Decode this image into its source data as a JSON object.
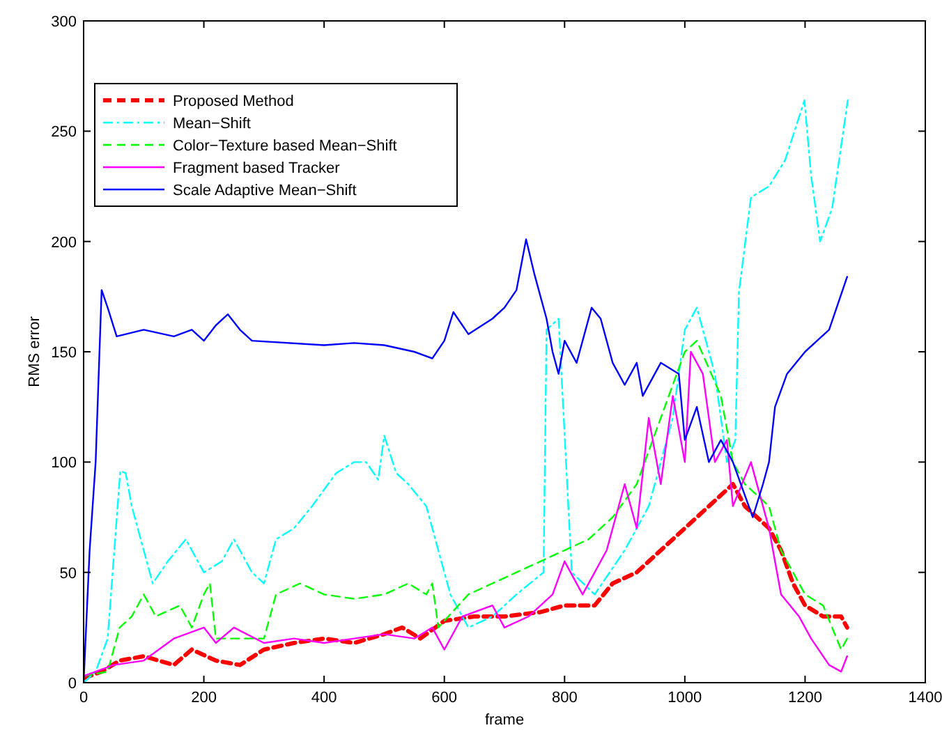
{
  "chart_data": {
    "type": "line",
    "xlabel": "frame",
    "ylabel": "RMS error",
    "xlim": [
      0,
      1400
    ],
    "xticks": [
      0,
      200,
      400,
      600,
      800,
      1000,
      1200,
      1400
    ],
    "ylim": [
      0,
      300
    ],
    "yticks": [
      0,
      50,
      100,
      150,
      200,
      250,
      300
    ],
    "grid": false,
    "legend": "top left",
    "marker": "none",
    "series": [
      {
        "name": "Proposed Method",
        "color": "#ff0000",
        "line_style": "dashed",
        "x": [
          0,
          30,
          60,
          100,
          150,
          180,
          220,
          260,
          300,
          350,
          400,
          450,
          500,
          530,
          560,
          600,
          650,
          700,
          760,
          800,
          850,
          880,
          920,
          960,
          1000,
          1040,
          1060,
          1080,
          1100,
          1120,
          1140,
          1160,
          1180,
          1200,
          1230,
          1260,
          1270
        ],
        "values": [
          2,
          5,
          10,
          12,
          8,
          15,
          10,
          8,
          15,
          18,
          20,
          18,
          22,
          25,
          20,
          28,
          30,
          30,
          32,
          35,
          35,
          45,
          50,
          60,
          70,
          80,
          85,
          90,
          80,
          75,
          70,
          60,
          45,
          35,
          30,
          30,
          25
        ]
      },
      {
        "name": "Mean−Shift",
        "color": "#00ffff",
        "line_style": "dashdot",
        "x": [
          0,
          20,
          40,
          61,
          70,
          80,
          100,
          115,
          140,
          170,
          180,
          200,
          230,
          250,
          280,
          300,
          320,
          350,
          380,
          420,
          450,
          470,
          490,
          500,
          520,
          540,
          570,
          590,
          610,
          640,
          680,
          720,
          765,
          770,
          790,
          812,
          850,
          900,
          940,
          980,
          1000,
          1020,
          1050,
          1070,
          1084,
          1090,
          1110,
          1140,
          1167,
          1199,
          1210,
          1225,
          1245,
          1271
        ],
        "values": [
          0,
          5,
          20,
          96,
          95,
          80,
          60,
          45,
          55,
          65,
          60,
          50,
          55,
          65,
          50,
          45,
          65,
          70,
          80,
          95,
          100,
          100,
          92,
          112,
          95,
          90,
          80,
          60,
          40,
          25,
          30,
          40,
          50,
          160,
          165,
          50,
          40,
          60,
          80,
          120,
          160,
          170,
          140,
          100,
          110,
          177,
          220,
          225,
          237,
          264,
          230,
          200,
          215,
          264
        ]
      },
      {
        "name": "Color−Texture based Mean−Shift",
        "color": "#00ff00",
        "line_style": "dashed",
        "x": [
          0,
          40,
          60,
          80,
          100,
          120,
          160,
          180,
          200,
          210,
          220,
          300,
          320,
          360,
          400,
          450,
          500,
          540,
          570,
          580,
          590,
          640,
          680,
          720,
          760,
          800,
          840,
          880,
          920,
          960,
          1000,
          1020,
          1060,
          1080,
          1100,
          1140,
          1160,
          1200,
          1230,
          1260,
          1270
        ],
        "values": [
          3,
          5,
          25,
          30,
          40,
          30,
          35,
          25,
          40,
          45,
          20,
          20,
          40,
          45,
          40,
          38,
          40,
          45,
          40,
          45,
          25,
          40,
          45,
          50,
          55,
          60,
          65,
          75,
          90,
          120,
          150,
          155,
          130,
          100,
          90,
          80,
          60,
          40,
          35,
          15,
          20
        ]
      },
      {
        "name": "Fragment based Tracker",
        "color": "#ff00ff",
        "line_style": "solid",
        "x": [
          0,
          50,
          100,
          150,
          200,
          220,
          250,
          300,
          350,
          400,
          450,
          500,
          550,
          580,
          600,
          630,
          680,
          700,
          740,
          780,
          800,
          830,
          870,
          900,
          920,
          940,
          960,
          980,
          1000,
          1010,
          1030,
          1050,
          1070,
          1080,
          1110,
          1140,
          1160,
          1190,
          1210,
          1240,
          1260,
          1270
        ],
        "values": [
          3,
          8,
          10,
          20,
          25,
          18,
          25,
          18,
          20,
          18,
          20,
          22,
          20,
          25,
          15,
          30,
          35,
          25,
          30,
          40,
          55,
          40,
          60,
          90,
          70,
          120,
          90,
          130,
          100,
          150,
          140,
          100,
          110,
          80,
          100,
          70,
          40,
          30,
          20,
          8,
          5,
          12
        ]
      },
      {
        "name": "Scale Adaptive Mean−Shift",
        "color": "#0000ff",
        "line_style": "solid",
        "x": [
          0,
          10,
          20,
          30,
          40,
          55,
          100,
          150,
          180,
          200,
          220,
          240,
          260,
          280,
          400,
          450,
          500,
          550,
          580,
          600,
          615,
          640,
          680,
          700,
          720,
          736,
          750,
          770,
          780,
          790,
          800,
          820,
          845,
          860,
          880,
          900,
          920,
          930,
          960,
          990,
          1000,
          1020,
          1040,
          1060,
          1080,
          1113,
          1130,
          1140,
          1150,
          1170,
          1200,
          1220,
          1240,
          1270
        ],
        "values": [
          0,
          60,
          100,
          178,
          170,
          157,
          160,
          157,
          160,
          155,
          162,
          167,
          160,
          155,
          153,
          154,
          153,
          150,
          147,
          155,
          168,
          158,
          165,
          170,
          178,
          201,
          185,
          165,
          150,
          140,
          155,
          145,
          170,
          165,
          145,
          135,
          145,
          130,
          145,
          140,
          110,
          125,
          100,
          110,
          100,
          75,
          90,
          100,
          125,
          140,
          150,
          155,
          160,
          184
        ]
      }
    ]
  }
}
